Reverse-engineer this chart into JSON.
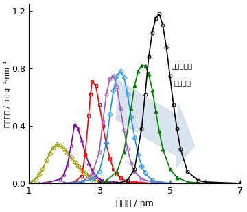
{
  "xlabel": "細孔径 / nm",
  "ylabel": "細孔容量 / ml·g⁻¹·nm⁻¹",
  "xlim": [
    1,
    7
  ],
  "ylim": [
    0,
    1.25
  ],
  "yticks": [
    0,
    0.4,
    0.8,
    1.2
  ],
  "xticks": [
    1,
    3,
    5,
    7
  ],
  "annotation_line1": "界面活性剤",
  "annotation_line2": "鎖長増加",
  "series": [
    {
      "color": "#9B9B00",
      "marker": "D",
      "marker_fill": "none",
      "x": [
        1.0,
        1.1,
        1.2,
        1.3,
        1.4,
        1.5,
        1.6,
        1.7,
        1.8,
        1.9,
        2.0,
        2.1,
        2.2,
        2.3,
        2.4,
        2.5,
        2.6,
        2.7,
        2.8,
        2.9,
        3.0,
        3.2,
        3.5
      ],
      "y": [
        0.0,
        0.01,
        0.03,
        0.06,
        0.1,
        0.16,
        0.21,
        0.25,
        0.27,
        0.26,
        0.24,
        0.21,
        0.18,
        0.15,
        0.12,
        0.09,
        0.07,
        0.05,
        0.03,
        0.02,
        0.01,
        0.01,
        0.0
      ]
    },
    {
      "color": "#7B00A0",
      "marker": "^",
      "marker_fill": "none",
      "x": [
        1.0,
        1.3,
        1.6,
        1.9,
        2.0,
        2.1,
        2.2,
        2.3,
        2.4,
        2.5,
        2.6,
        2.7,
        2.8,
        2.9,
        3.0,
        3.1,
        3.2,
        3.4,
        3.7,
        4.2
      ],
      "y": [
        0.0,
        0.0,
        0.01,
        0.03,
        0.06,
        0.13,
        0.26,
        0.41,
        0.38,
        0.3,
        0.21,
        0.14,
        0.09,
        0.05,
        0.03,
        0.02,
        0.01,
        0.01,
        0.0,
        0.0
      ]
    },
    {
      "color": "#ff0000",
      "marker": "s",
      "marker_fill": "none",
      "x": [
        1.5,
        2.0,
        2.3,
        2.5,
        2.6,
        2.7,
        2.75,
        2.8,
        2.9,
        3.0,
        3.1,
        3.2,
        3.3,
        3.4,
        3.5,
        3.6,
        3.8,
        4.0,
        4.5,
        5.0
      ],
      "y": [
        0.0,
        0.0,
        0.01,
        0.05,
        0.2,
        0.47,
        0.62,
        0.71,
        0.68,
        0.55,
        0.4,
        0.27,
        0.17,
        0.1,
        0.06,
        0.04,
        0.01,
        0.01,
        0.0,
        0.0
      ]
    },
    {
      "color": "#9B59B6",
      "marker": "o",
      "marker_fill": "none",
      "x": [
        1.5,
        2.0,
        2.5,
        2.8,
        3.0,
        3.1,
        3.2,
        3.3,
        3.4,
        3.5,
        3.6,
        3.7,
        3.8,
        3.9,
        4.0,
        4.2,
        4.5,
        5.0
      ],
      "y": [
        0.0,
        0.0,
        0.01,
        0.06,
        0.22,
        0.43,
        0.62,
        0.73,
        0.75,
        0.67,
        0.52,
        0.37,
        0.24,
        0.14,
        0.08,
        0.03,
        0.01,
        0.0
      ]
    },
    {
      "color": "#1E90FF",
      "marker": "D",
      "marker_fill": "none",
      "x": [
        2.0,
        2.5,
        2.8,
        3.0,
        3.2,
        3.3,
        3.4,
        3.5,
        3.6,
        3.7,
        3.8,
        3.9,
        4.0,
        4.1,
        4.2,
        4.3,
        4.5,
        5.0,
        6.0
      ],
      "y": [
        0.0,
        0.01,
        0.03,
        0.08,
        0.28,
        0.48,
        0.65,
        0.75,
        0.78,
        0.74,
        0.62,
        0.46,
        0.32,
        0.2,
        0.12,
        0.07,
        0.02,
        0.0,
        0.0
      ]
    },
    {
      "color": "#008000",
      "marker": "^",
      "marker_fill": "full",
      "x": [
        2.5,
        3.0,
        3.2,
        3.5,
        3.7,
        3.9,
        4.0,
        4.1,
        4.2,
        4.3,
        4.4,
        4.5,
        4.6,
        4.7,
        4.8,
        5.0,
        5.2,
        5.5,
        6.0
      ],
      "y": [
        0.0,
        0.0,
        0.02,
        0.08,
        0.22,
        0.52,
        0.68,
        0.78,
        0.82,
        0.82,
        0.76,
        0.65,
        0.5,
        0.36,
        0.24,
        0.1,
        0.04,
        0.01,
        0.0
      ]
    },
    {
      "color": "#000000",
      "marker": "o",
      "marker_fill": "none",
      "x": [
        3.0,
        3.5,
        3.8,
        4.0,
        4.2,
        4.3,
        4.4,
        4.5,
        4.6,
        4.7,
        4.8,
        4.9,
        5.0,
        5.1,
        5.2,
        5.3,
        5.5,
        5.8,
        6.0,
        7.0
      ],
      "y": [
        0.0,
        0.0,
        0.02,
        0.1,
        0.38,
        0.62,
        0.88,
        1.05,
        1.15,
        1.18,
        1.1,
        0.95,
        0.75,
        0.55,
        0.38,
        0.24,
        0.08,
        0.02,
        0.01,
        0.0
      ]
    }
  ]
}
